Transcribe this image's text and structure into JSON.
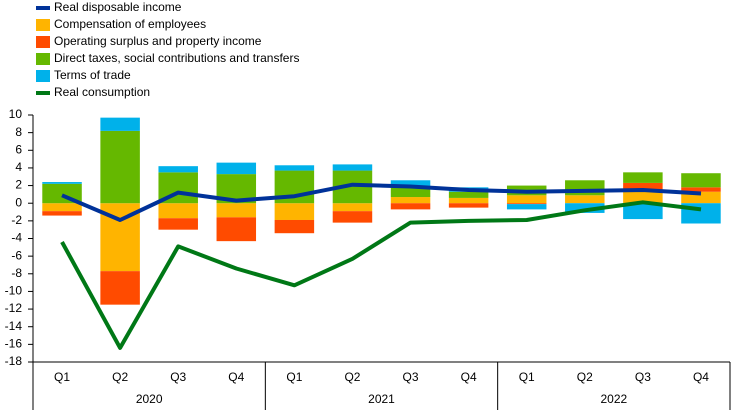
{
  "chart_data": {
    "type": "bar",
    "categories": [
      "Q1",
      "Q2",
      "Q3",
      "Q4",
      "Q1",
      "Q2",
      "Q3",
      "Q4",
      "Q1",
      "Q2",
      "Q3",
      "Q4"
    ],
    "years": [
      "2020",
      "2021",
      "2022"
    ],
    "ylim": [
      -18,
      10
    ],
    "yticks": [
      -18,
      -16,
      -14,
      -12,
      -10,
      -8,
      -6,
      -4,
      -2,
      0,
      2,
      4,
      6,
      8,
      10
    ],
    "legend": "top-left",
    "series": [
      {
        "name": "Real disposable income",
        "kind": "line",
        "color": "#003299",
        "values": [
          0.9,
          -1.9,
          1.2,
          0.3,
          0.8,
          2.1,
          1.9,
          1.5,
          1.3,
          1.4,
          1.5,
          1.1
        ]
      },
      {
        "name": "Compensation of employees",
        "kind": "bar",
        "color": "#ffb400",
        "values": [
          -0.9,
          -7.7,
          -1.7,
          -1.6,
          -1.9,
          -0.9,
          0.7,
          0.6,
          0.9,
          0.9,
          1.4,
          1.3
        ]
      },
      {
        "name": "Operating surplus and property income",
        "kind": "bar",
        "color": "#ff4b00",
        "values": [
          -0.5,
          -3.8,
          -1.3,
          -2.7,
          -1.5,
          -1.3,
          -0.7,
          -0.5,
          -0.1,
          0.0,
          0.9,
          0.5
        ]
      },
      {
        "name": "Direct taxes, social contributions and transfers",
        "kind": "bar",
        "color": "#65b800",
        "values": [
          2.2,
          8.2,
          3.5,
          3.3,
          3.7,
          3.7,
          1.2,
          0.7,
          1.1,
          1.7,
          1.2,
          1.6
        ]
      },
      {
        "name": "Terms of trade",
        "kind": "bar",
        "color": "#00b1ea",
        "values": [
          0.2,
          1.5,
          0.7,
          1.3,
          0.6,
          0.7,
          0.7,
          0.5,
          -0.6,
          -1.1,
          -1.8,
          -2.3
        ]
      },
      {
        "name": "Real consumption",
        "kind": "line",
        "color": "#007816",
        "values": [
          -4.4,
          -16.4,
          -4.9,
          -7.4,
          -9.3,
          -6.3,
          -2.2,
          -2.0,
          -1.9,
          -0.8,
          0.1,
          -0.7
        ]
      }
    ]
  }
}
